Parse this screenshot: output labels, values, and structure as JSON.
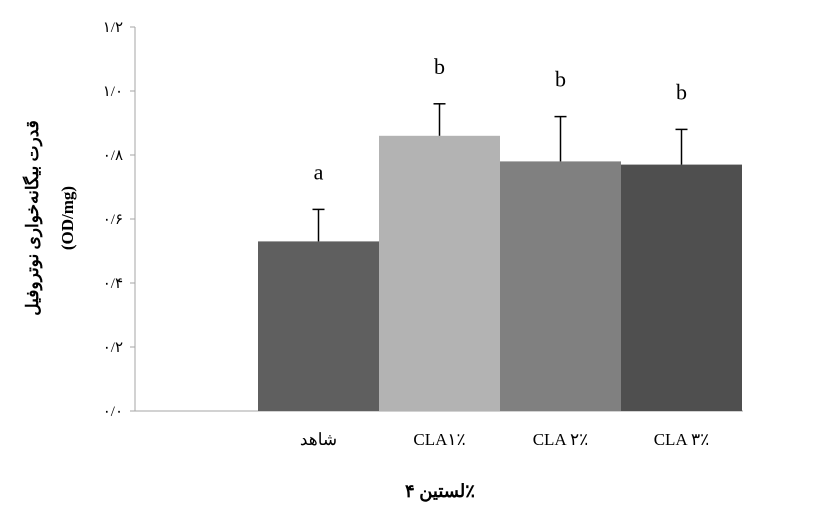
{
  "chart_data": {
    "type": "bar",
    "title": "",
    "ylabel_line1": "قدرت بیگانه‌خواری نوتروفیل",
    "ylabel_line2": "(OD/mg)",
    "xlabel": "لستین ۴٪",
    "ylim": [
      0,
      1.2
    ],
    "ytick_values": [
      0,
      0.2,
      0.4,
      0.6,
      0.8,
      1.0,
      1.2
    ],
    "ytick_labels": [
      "۰/۰",
      "۰/۲",
      "۰/۴",
      "۰/۶",
      "۰/۸",
      "۱/۰",
      "۱/۲"
    ],
    "categories": [
      "شاهد",
      "CLA۱٪",
      "CLA ۲٪",
      "CLA ۳٪"
    ],
    "values": [
      0.53,
      0.86,
      0.78,
      0.77
    ],
    "error": [
      0.1,
      0.1,
      0.14,
      0.11
    ],
    "significance": [
      "a",
      "b",
      "b",
      "b"
    ],
    "bar_colors": [
      "#5f5f5f",
      "#b3b3b3",
      "#808080",
      "#4f4f4f"
    ],
    "axis_color": "#a6a6a6",
    "grid": false
  }
}
